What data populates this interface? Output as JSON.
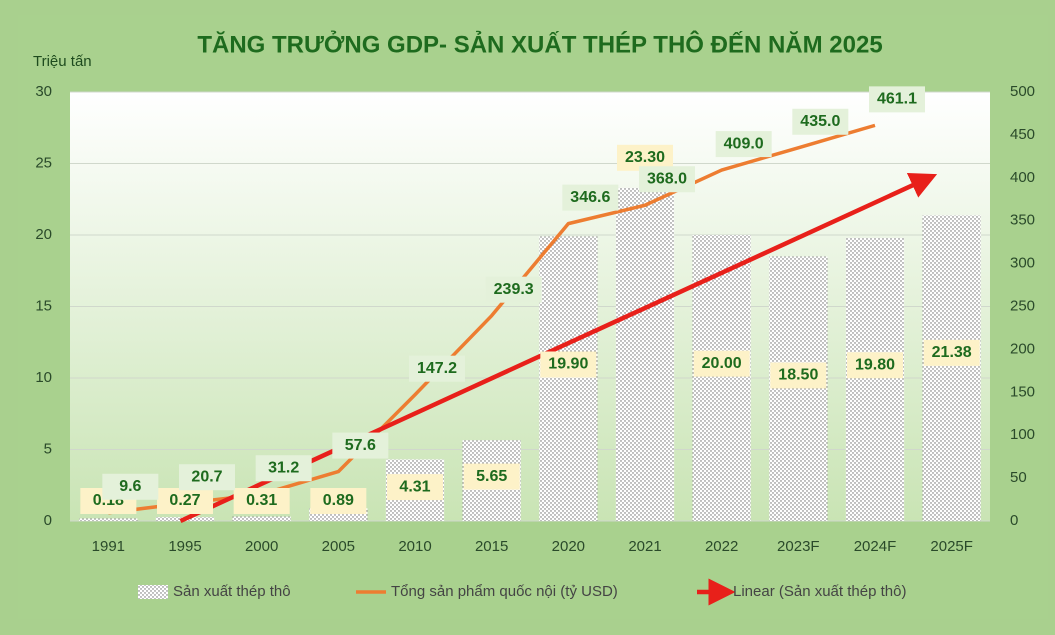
{
  "chart_data": {
    "type": "bar_line",
    "title": "TĂNG TRƯỞNG GDP- SẢN XUẤT THÉP THÔ ĐẾN NĂM 2025",
    "y_label": "Triệu tấn",
    "categories": [
      "1991",
      "1995",
      "2000",
      "2005",
      "2010",
      "2015",
      "2020",
      "2021",
      "2022",
      "2023F",
      "2024F",
      "2025F"
    ],
    "series": [
      {
        "name": "Sản xuất thép thô",
        "type": "bar",
        "color": "#ffffff",
        "values": [
          0.18,
          0.27,
          0.31,
          0.89,
          4.31,
          5.65,
          19.9,
          23.3,
          20.0,
          18.5,
          19.8,
          21.38
        ],
        "value_labels": [
          "0.18",
          "0.27",
          "0.31",
          "0.89",
          "4.31",
          "5.65",
          "19.90",
          "23.30",
          "20.00",
          "18.50",
          "19.80",
          "21.38"
        ]
      },
      {
        "name": "Tổng sản phẩm quốc nội (tỷ USD)",
        "type": "line",
        "axis": "y2",
        "color": "#ed7d31",
        "values": [
          9.6,
          20.7,
          31.2,
          57.6,
          147.2,
          239.3,
          346.6,
          368.0,
          409.0,
          435.0,
          461.1,
          null
        ],
        "value_labels": [
          "9.6",
          "20.7",
          "31.2",
          "57.6",
          "147.2",
          "239.3",
          "346.6",
          "368.0",
          "409.0",
          "435.0",
          "461.1",
          null
        ]
      }
    ],
    "trendline": {
      "name": "Linear (Sản xuất thép thô)",
      "color": "#e8201a",
      "of_series": 0
    },
    "ylim": [
      0,
      30
    ],
    "yticks": [
      0,
      5,
      10,
      15,
      20,
      25,
      30
    ],
    "y2lim": [
      0,
      500
    ],
    "y2ticks": [
      0,
      50,
      100,
      150,
      200,
      250,
      300,
      350,
      400,
      450,
      500
    ],
    "grid": true
  }
}
